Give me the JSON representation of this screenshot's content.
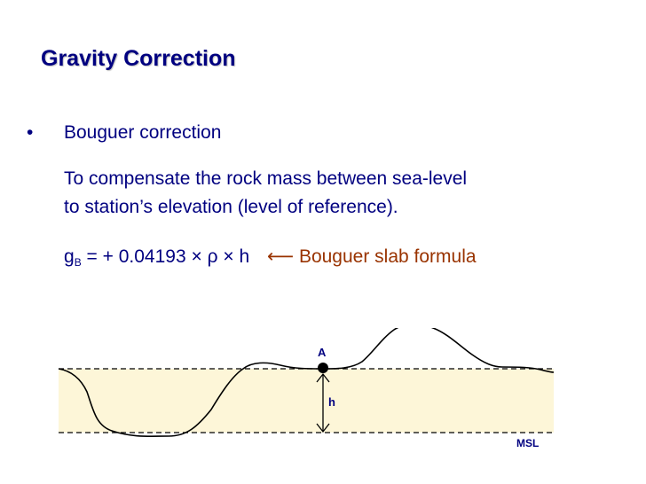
{
  "title": "Gravity Correction",
  "bullet": {
    "symbol": "•",
    "heading": "Bouguer correction"
  },
  "description_lines": [
    "To compensate the rock mass between sea-level",
    "to station’s elevation (level of reference)."
  ],
  "formula": {
    "g": "g",
    "subscript": "B",
    "equals": " = ",
    "expression": "+ 0.04193 × ρ × h",
    "arrow": "⟵",
    "label": "Bouguer slab formula"
  },
  "diagram": {
    "station_label": "A",
    "height_label": "h",
    "datum_label": "MSL",
    "colors": {
      "fill": "#fdf6d8",
      "line": "#000000",
      "text": "#000080",
      "accent": "#993300"
    }
  }
}
